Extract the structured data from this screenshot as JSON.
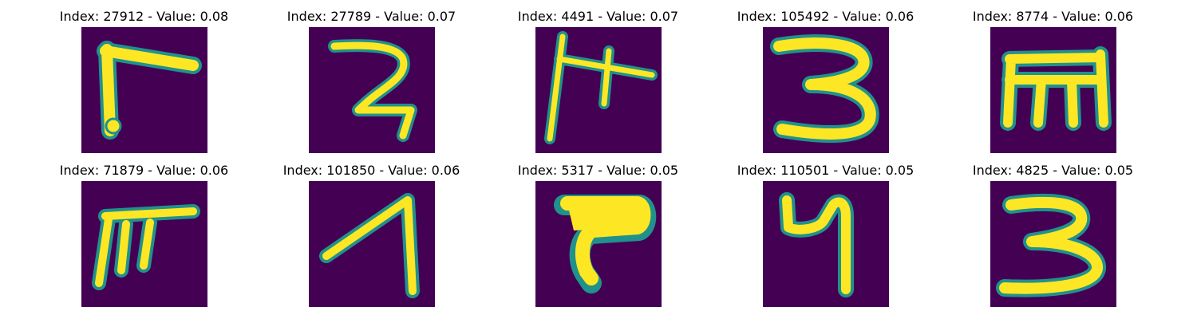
{
  "figure": {
    "background_color": "#440154",
    "stroke_color": "#fde725",
    "halo_color": "#21918c",
    "panels": [
      {
        "title": "Index: 27912 - Value: 0.08",
        "glyph": "glyph-1"
      },
      {
        "title": "Index: 27789 - Value: 0.07",
        "glyph": "glyph-2"
      },
      {
        "title": "Index: 4491 - Value: 0.07",
        "glyph": "glyph-3"
      },
      {
        "title": "Index: 105492 - Value: 0.06",
        "glyph": "glyph-4"
      },
      {
        "title": "Index: 8774 - Value: 0.06",
        "glyph": "glyph-5"
      },
      {
        "title": "Index: 71879 - Value: 0.06",
        "glyph": "glyph-6"
      },
      {
        "title": "Index: 101850 - Value: 0.06",
        "glyph": "glyph-7"
      },
      {
        "title": "Index: 5317 - Value: 0.05",
        "glyph": "glyph-8"
      },
      {
        "title": "Index: 110501 - Value: 0.05",
        "glyph": "glyph-9"
      },
      {
        "title": "Index: 4825 - Value: 0.05",
        "glyph": "glyph-10"
      }
    ]
  }
}
